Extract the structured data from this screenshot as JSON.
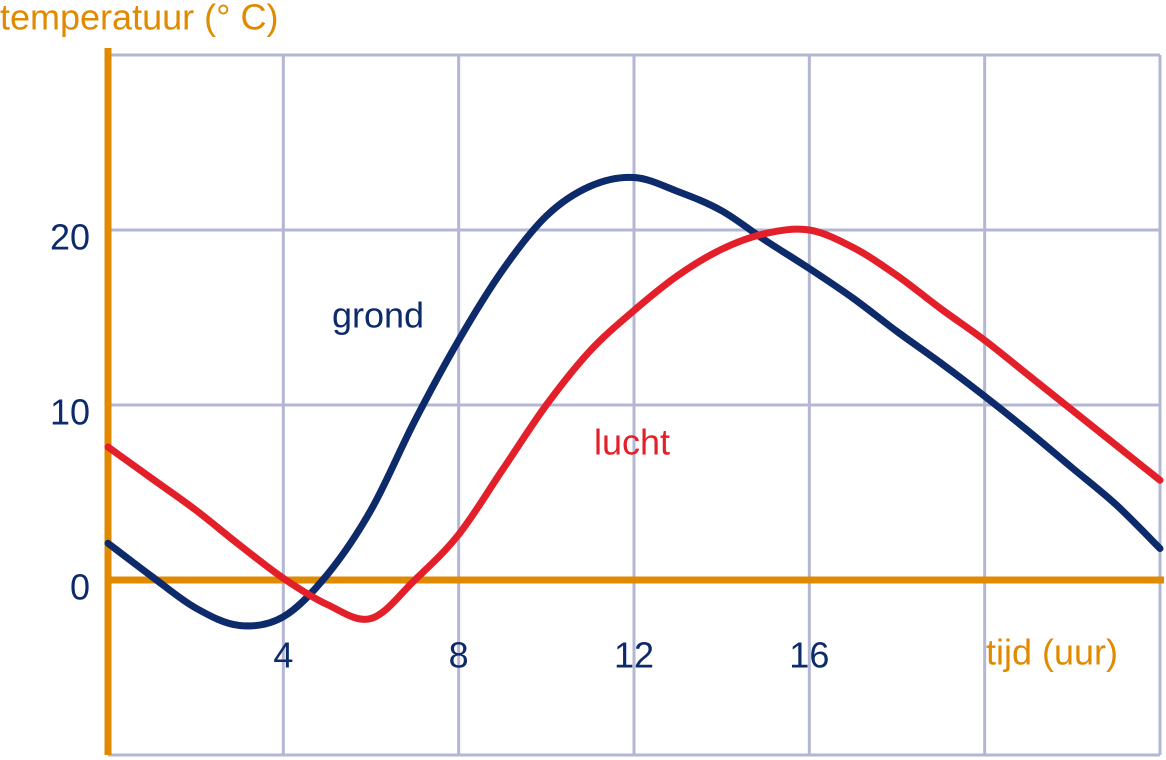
{
  "chart_data": {
    "type": "line",
    "ylabel": "temperatuur (° C)",
    "xlabel": "tijd (uur)",
    "x": [
      0,
      1,
      2,
      3,
      4,
      5,
      6,
      7,
      8,
      9,
      10,
      11,
      12,
      13,
      14,
      15,
      16,
      17,
      18,
      19,
      20,
      21,
      22,
      23,
      24
    ],
    "series": [
      {
        "name": "grond",
        "color": "#0d2a6b",
        "values": [
          2.1,
          0.2,
          -1.6,
          -2.6,
          -2.1,
          0.3,
          4,
          9.1,
          13.7,
          17.7,
          20.8,
          22.5,
          23,
          22.2,
          21.1,
          19.4,
          17.8,
          16.1,
          14.2,
          12.4,
          10.5,
          8.5,
          6.4,
          4.3,
          1.8
        ]
      },
      {
        "name": "lucht",
        "color": "#e3202a",
        "values": [
          7.6,
          5.8,
          4,
          2,
          0.1,
          -1.4,
          -2.2,
          0,
          2.6,
          6.3,
          10,
          13.1,
          15.4,
          17.4,
          18.9,
          19.8,
          20,
          19,
          17.4,
          15.5,
          13.7,
          11.7,
          9.7,
          7.7,
          5.7
        ]
      }
    ],
    "xlim": [
      0,
      24
    ],
    "ylim": [
      -10,
      30
    ],
    "xticks": [
      4,
      8,
      12,
      16
    ],
    "yticks": [
      0,
      10,
      20
    ],
    "xgrid": [
      4,
      8,
      12,
      16,
      20,
      24
    ],
    "ygrid": [
      -10,
      10,
      20,
      30
    ],
    "axis_color": "#e08a00",
    "grid_color": "#b3b7d3"
  }
}
